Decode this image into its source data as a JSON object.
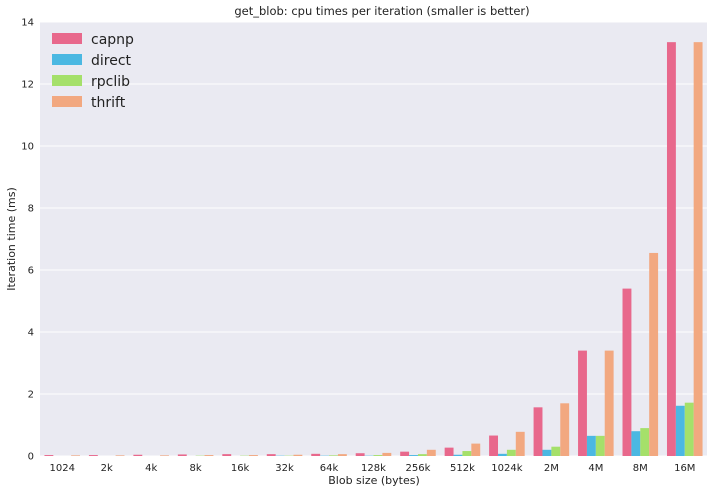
{
  "chart_data": {
    "type": "bar",
    "title": "get_blob: cpu times per iteration (smaller is better)",
    "xlabel": "Blob size (bytes)",
    "ylabel": "Iteration time (ms)",
    "ylim": [
      0,
      14
    ],
    "yticks": [
      0,
      2,
      4,
      6,
      8,
      10,
      12,
      14
    ],
    "grid": true,
    "legend_position": "top-left",
    "categories": [
      "1024",
      "2k",
      "4k",
      "8k",
      "16k",
      "32k",
      "64k",
      "128k",
      "256k",
      "512k",
      "1024k",
      "2M",
      "4M",
      "8M",
      "16M"
    ],
    "series": [
      {
        "name": "capnp",
        "color": "#e8688c",
        "values": [
          0.03,
          0.03,
          0.04,
          0.05,
          0.06,
          0.06,
          0.07,
          0.09,
          0.14,
          0.27,
          0.66,
          1.57,
          3.4,
          5.4,
          13.35
        ]
      },
      {
        "name": "direct",
        "color": "#4bb8e2",
        "values": [
          0.0,
          0.0,
          0.0,
          0.0,
          0.0,
          0.01,
          0.01,
          0.01,
          0.03,
          0.04,
          0.07,
          0.2,
          0.65,
          0.8,
          1.62
        ]
      },
      {
        "name": "rpclib",
        "color": "#a5e06a",
        "values": [
          0.0,
          0.0,
          0.0,
          0.01,
          0.01,
          0.01,
          0.02,
          0.03,
          0.06,
          0.16,
          0.2,
          0.3,
          0.65,
          0.9,
          1.72
        ]
      },
      {
        "name": "thrift",
        "color": "#f2a880",
        "values": [
          0.02,
          0.02,
          0.02,
          0.03,
          0.03,
          0.04,
          0.06,
          0.1,
          0.2,
          0.4,
          0.78,
          1.7,
          3.4,
          6.55,
          13.35
        ]
      }
    ]
  }
}
